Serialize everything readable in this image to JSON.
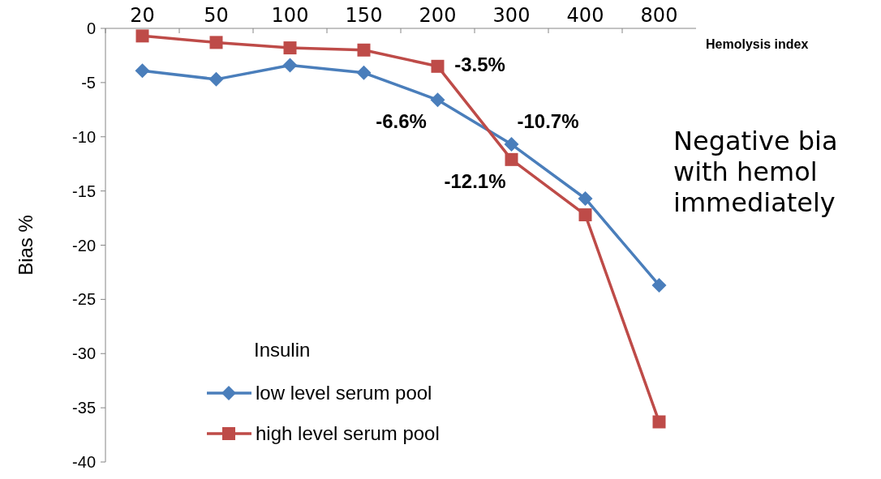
{
  "chart_data": {
    "type": "line",
    "xlabel": "Hemolysis index",
    "ylabel": "Bias %",
    "legend_title": "Insulin",
    "legend": "bottom left",
    "categories": [
      "20",
      "50",
      "100",
      "150",
      "200",
      "300",
      "400",
      "800"
    ],
    "ylim": [
      -40,
      0
    ],
    "yticks": [
      0,
      -5,
      -10,
      -15,
      -20,
      -25,
      -30,
      -35,
      -40
    ],
    "series": [
      {
        "name": "low level serum pool",
        "color": "#4a7ebb",
        "marker": "diamond",
        "values": [
          -3.9,
          -4.7,
          -3.4,
          -4.1,
          -6.6,
          -10.7,
          -15.7,
          -23.7
        ],
        "value_labels": [
          null,
          null,
          null,
          null,
          "-6.6%",
          "-10.7%",
          null,
          null
        ]
      },
      {
        "name": "high level serum pool",
        "color": "#be4b48",
        "marker": "square",
        "values": [
          -0.7,
          -1.3,
          -1.8,
          -2.0,
          -3.5,
          -12.1,
          -17.2,
          -36.3
        ],
        "value_labels": [
          null,
          null,
          null,
          null,
          "-3.5%",
          "-12.1%",
          null,
          null
        ]
      }
    ],
    "annotations": [
      "Negative bia",
      "with hemol",
      "immediately"
    ]
  }
}
